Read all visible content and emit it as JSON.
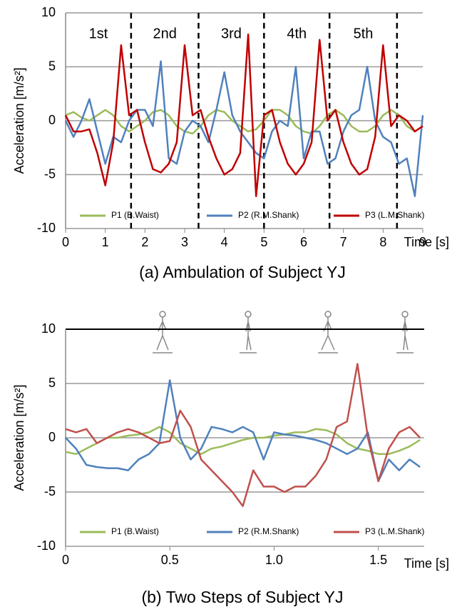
{
  "chart_data": [
    {
      "type": "line",
      "title": "(a) Ambulation  of  Subject  YJ",
      "xlabel": "Time [s]",
      "ylabel": "Acceleration [m/s²]",
      "x": [
        0,
        0.2,
        0.4,
        0.6,
        0.8,
        1,
        1.2,
        1.4,
        1.6,
        1.8,
        2,
        2.2,
        2.4,
        2.6,
        2.8,
        3,
        3.2,
        3.4,
        3.6,
        3.8,
        4,
        4.2,
        4.4,
        4.6,
        4.8,
        5,
        5.2,
        5.4,
        5.6,
        5.8,
        6,
        6.2,
        6.4,
        6.6,
        6.8,
        7,
        7.2,
        7.4,
        7.6,
        7.8,
        8,
        8.2,
        8.4,
        8.6,
        8.8,
        9
      ],
      "series": [
        {
          "name": "P1 (B.Waist)",
          "color": "#9bbb59",
          "values": [
            0.5,
            0.8,
            0.3,
            0,
            0.5,
            1,
            0.5,
            -0.5,
            -1,
            -0.5,
            0,
            0.8,
            1,
            0.5,
            -0.5,
            -1,
            -1.2,
            -0.5,
            0.5,
            1,
            0.8,
            0,
            -0.5,
            -1,
            -0.8,
            0,
            1,
            1,
            0.5,
            -0.5,
            -1,
            -1.2,
            -0.5,
            0.5,
            1,
            0.5,
            -0.5,
            -1,
            -1,
            -0.5,
            0.5,
            1,
            0.5,
            -0.5,
            -1,
            -0.5
          ]
        },
        {
          "name": "P2 (R.M.Shank)",
          "color": "#4f81bd",
          "values": [
            0,
            -1.5,
            0,
            2,
            -1,
            -4,
            -1.5,
            -2,
            0,
            1,
            1,
            -0.5,
            5.5,
            -3.5,
            -4,
            -1,
            0,
            -0.5,
            -2,
            1,
            4.5,
            0.5,
            -1,
            -2,
            -3,
            -3.5,
            -1,
            0,
            -0.5,
            5,
            -3.5,
            -1,
            -1,
            -4,
            -3.5,
            -1,
            0.5,
            1,
            5,
            0,
            -1.5,
            -2,
            -4,
            -3.5,
            -7,
            0.5
          ]
        },
        {
          "name": "P3 (L.M.Shank)",
          "color": "#c00000",
          "values": [
            0.5,
            -1,
            -1,
            -0.8,
            -3,
            -6,
            -2,
            7,
            0.5,
            1,
            -2,
            -4.5,
            -4.8,
            -4,
            -2,
            7,
            0.5,
            1,
            -1.5,
            -3.5,
            -5,
            -4.5,
            -3,
            8,
            -7,
            0.5,
            1,
            -2,
            -4,
            -5,
            -4,
            -2,
            7.5,
            0,
            1,
            -2,
            -4,
            -5,
            -4.5,
            -1.5,
            7,
            -0.5,
            0.5,
            0,
            -1,
            -0.5
          ]
        }
      ],
      "step_labels": [
        "1st",
        "2nd",
        "3rd",
        "4th",
        "5th"
      ],
      "step_boundaries": [
        1.65,
        3.35,
        5.0,
        6.65,
        8.35
      ],
      "xlim": [
        0,
        9
      ],
      "xticks": [
        0,
        1,
        2,
        3,
        4,
        5,
        6,
        7,
        8,
        9
      ],
      "ylim": [
        -10,
        10
      ],
      "yticks": [
        -10,
        -5,
        0,
        5,
        10
      ],
      "grid": true
    },
    {
      "type": "line",
      "title": "(b) Two Steps  of  Subject  YJ",
      "xlabel": "Time [s]",
      "ylabel": "Acceleration [m/s²]",
      "x": [
        0,
        0.05,
        0.1,
        0.15,
        0.2,
        0.25,
        0.3,
        0.35,
        0.4,
        0.45,
        0.5,
        0.55,
        0.6,
        0.65,
        0.7,
        0.75,
        0.8,
        0.85,
        0.9,
        0.95,
        1,
        1.05,
        1.1,
        1.15,
        1.2,
        1.25,
        1.3,
        1.35,
        1.4,
        1.45,
        1.5,
        1.55,
        1.6,
        1.65,
        1.7
      ],
      "series": [
        {
          "name": "P1 (B.Waist)",
          "color": "#9bbb59",
          "values": [
            -1.3,
            -1.5,
            -1,
            -0.5,
            0,
            0,
            0.2,
            0.3,
            0.5,
            1,
            0.5,
            -0.5,
            -1,
            -1.5,
            -1,
            -0.8,
            -0.5,
            -0.2,
            0,
            0,
            0.2,
            0.3,
            0.5,
            0.5,
            0.8,
            0.7,
            0.3,
            -0.5,
            -1,
            -1.2,
            -1.5,
            -1.5,
            -1.2,
            -0.8,
            -0.2
          ]
        },
        {
          "name": "P2 (R.M.Shank)",
          "color": "#4f81bd",
          "values": [
            0,
            -1,
            -2.5,
            -2.7,
            -2.8,
            -2.8,
            -3,
            -2,
            -1.5,
            -0.5,
            5.3,
            0,
            -2,
            -1,
            1,
            0.8,
            0.5,
            1,
            0.5,
            -2,
            0.5,
            0.3,
            0.2,
            0,
            -0.2,
            -0.5,
            -1,
            -1.5,
            -1,
            0.5,
            -4,
            -2,
            -3,
            -2,
            -2.7
          ]
        },
        {
          "name": "P3 (L.M.Shank)",
          "color": "#c0504d",
          "values": [
            0.8,
            0.5,
            0.8,
            -0.5,
            0,
            0.5,
            0.8,
            0.5,
            0,
            -0.5,
            -0.3,
            2.5,
            1,
            -2,
            -3,
            -4,
            -5,
            -6.3,
            -3,
            -4.5,
            -4.5,
            -5,
            -4.5,
            -4.5,
            -3.5,
            -2,
            1,
            1.5,
            6.8,
            0,
            -4,
            -1,
            0.5,
            1,
            0
          ]
        }
      ],
      "xlim": [
        0,
        1.72
      ],
      "xticks": [
        0,
        0.5,
        {
          "value": 1,
          "label": "1.0"
        },
        1.5
      ],
      "ylim": [
        -10,
        10
      ],
      "yticks": [
        -10,
        -5,
        0,
        5,
        10
      ],
      "grid": true
    }
  ]
}
